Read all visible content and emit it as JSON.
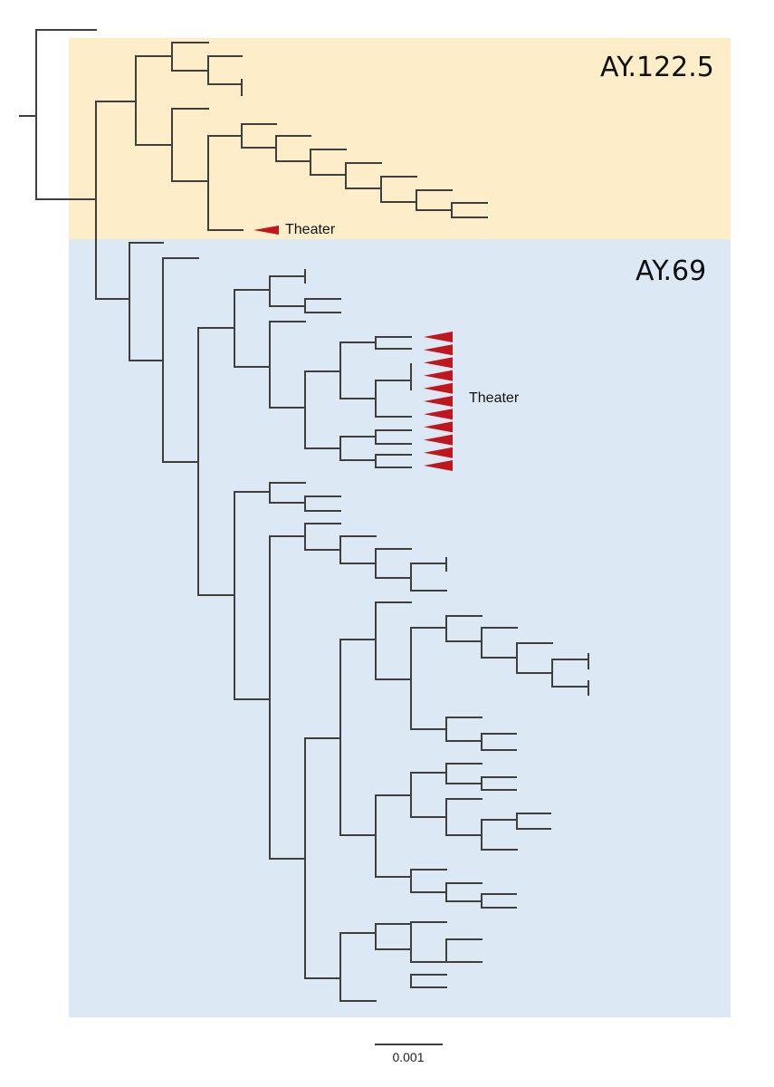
{
  "clades": [
    {
      "name": "AY.122.5",
      "color": "#fdeec9"
    },
    {
      "name": "AY.69",
      "color": "#dde8f5"
    }
  ],
  "tip_labels": [
    "Theater",
    "Theater"
  ],
  "marker_color": "#c0171f",
  "branch_color": "#3f3f3f",
  "scale_bar": {
    "label": "0.001"
  }
}
